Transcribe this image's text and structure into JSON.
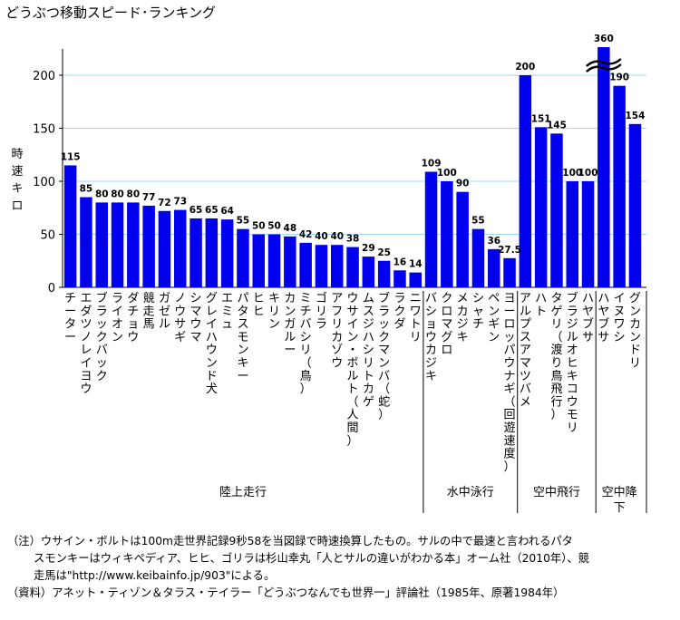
{
  "title": "どうぶつ移動スピード･ランキング",
  "ylabel": [
    "時",
    "速",
    "キ",
    "ロ"
  ],
  "chart_data": {
    "type": "bar",
    "title": "どうぶつ移動スピード･ランキング",
    "ylabel": "時速キロ",
    "ylim": [
      0,
      225
    ],
    "yticks": [
      0,
      50,
      100,
      150,
      200
    ],
    "grid": true,
    "categories": [
      "チーター",
      "エダツノレイヨウ",
      "ブラックバック",
      "ライオン",
      "ダチョウ",
      "競走馬",
      "ガゼル",
      "ノウサギ",
      "シマウマ",
      "グレイハウンド犬",
      "エミュ",
      "パタスモンキー",
      "ヒヒ",
      "キリン",
      "カンガルー",
      "ミチバシリ（鳥）",
      "ゴリラ",
      "アフリカゾウ",
      "ウサイン・ボルト（人間）",
      "ムスジハシリトカゲ",
      "ブラックマンバ（蛇）",
      "ラクダ",
      "ニワトリ",
      "バショウカジキ",
      "クロマグロ",
      "メカジキ",
      "シャチ",
      "ペンギン",
      "ヨーロッパウナギ（回遊速度）",
      "アルプスアマツバメ",
      "ハト",
      "タゲリ（渡り鳥飛行）",
      "ブラジルオヒキコウモリ",
      "ハヤブサ",
      "ハヤブサ",
      "イヌワシ",
      "グンカンドリ"
    ],
    "values": [
      115,
      85,
      80,
      80,
      80,
      77,
      72,
      73,
      65,
      65,
      64,
      55,
      50,
      50,
      48,
      42,
      40,
      40,
      38,
      29,
      25,
      16,
      14,
      109,
      100,
      90,
      55,
      36,
      27.5,
      200,
      151,
      145,
      100,
      100,
      360,
      190,
      154
    ],
    "value_labels": [
      "115",
      "85",
      "80",
      "80",
      "80",
      "77",
      "72",
      "73",
      "65",
      "65",
      "64",
      "55",
      "50",
      "50",
      "48",
      "42",
      "40",
      "40",
      "38",
      "29",
      "25",
      "16",
      "14",
      "109",
      "100",
      "90",
      "55",
      "36",
      "27.5",
      "200",
      "151",
      "145",
      "100",
      "100",
      "360",
      "190",
      "154"
    ],
    "broken_bar_value": 360,
    "groups": [
      {
        "label": "陸上走行",
        "count": 23
      },
      {
        "label": "水中泳行",
        "count": 6
      },
      {
        "label": "空中飛行",
        "count": 5
      },
      {
        "label": "空中降下",
        "count": 3
      }
    ],
    "bar_color": "#0000ee",
    "grid_color": "#9fd8f5"
  },
  "notes": [
    "（注）ウサイン・ボルトは100m走世界記録9秒58を当図録で時速換算したもの。サルの中で最速と言われるパタ",
    "スモンキーはウィキペディア、ヒヒ、ゴリラは杉山幸丸「人とサルの違いがわかる本」オーム社（2010年）、競",
    "走馬は\"http://www.keibainfo.jp/903\"による。",
    "（資料）アネット・ティゾン＆タラス・テイラー「どうぶつなんでも世界一」評論社（1985年、原著1984年）"
  ]
}
